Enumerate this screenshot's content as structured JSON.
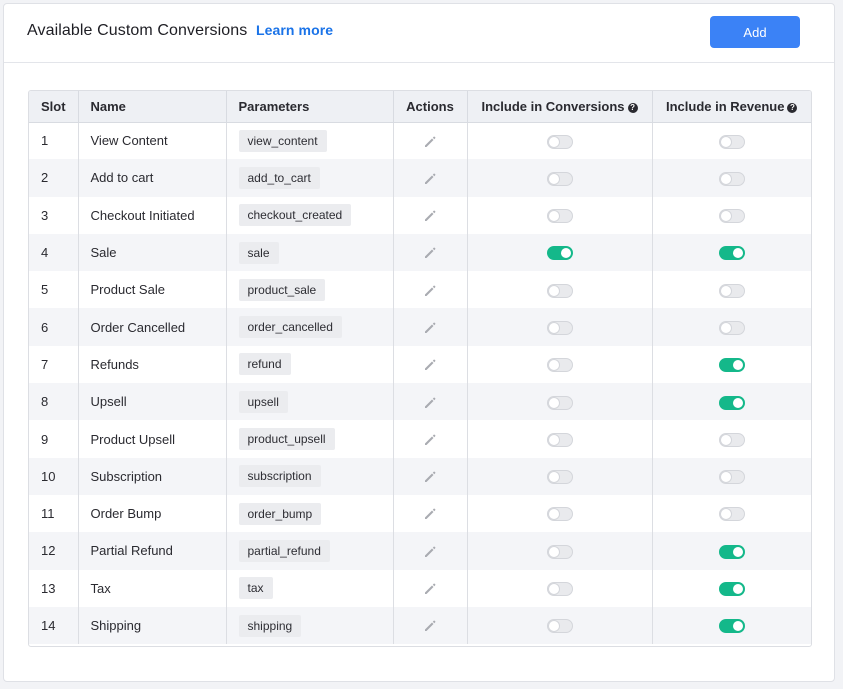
{
  "header": {
    "title": "Available Custom Conversions",
    "learn_more": "Learn more",
    "add_label": "Add"
  },
  "colors": {
    "accent": "#3b82f6",
    "toggle_on": "#14b88a",
    "link": "#1a73e8"
  },
  "table": {
    "columns": [
      "Slot",
      "Name",
      "Parameters",
      "Actions",
      "Include in Conversions",
      "Include in Revenue"
    ],
    "action_icon": "pencil-icon",
    "help_icon": "question-circle-icon",
    "rows": [
      {
        "slot": "1",
        "name": "View Content",
        "param": "view_content",
        "conversions": false,
        "revenue": false
      },
      {
        "slot": "2",
        "name": "Add to cart",
        "param": "add_to_cart",
        "conversions": false,
        "revenue": false
      },
      {
        "slot": "3",
        "name": "Checkout Initiated",
        "param": "checkout_created",
        "conversions": false,
        "revenue": false
      },
      {
        "slot": "4",
        "name": "Sale",
        "param": "sale",
        "conversions": true,
        "revenue": true
      },
      {
        "slot": "5",
        "name": "Product Sale",
        "param": "product_sale",
        "conversions": false,
        "revenue": false
      },
      {
        "slot": "6",
        "name": "Order Cancelled",
        "param": "order_cancelled",
        "conversions": false,
        "revenue": false
      },
      {
        "slot": "7",
        "name": "Refunds",
        "param": "refund",
        "conversions": false,
        "revenue": true
      },
      {
        "slot": "8",
        "name": "Upsell",
        "param": "upsell",
        "conversions": false,
        "revenue": true
      },
      {
        "slot": "9",
        "name": "Product Upsell",
        "param": "product_upsell",
        "conversions": false,
        "revenue": false
      },
      {
        "slot": "10",
        "name": "Subscription",
        "param": "subscription",
        "conversions": false,
        "revenue": false
      },
      {
        "slot": "11",
        "name": "Order Bump",
        "param": "order_bump",
        "conversions": false,
        "revenue": false
      },
      {
        "slot": "12",
        "name": "Partial Refund",
        "param": "partial_refund",
        "conversions": false,
        "revenue": true
      },
      {
        "slot": "13",
        "name": "Tax",
        "param": "tax",
        "conversions": false,
        "revenue": true
      },
      {
        "slot": "14",
        "name": "Shipping",
        "param": "shipping",
        "conversions": false,
        "revenue": true
      }
    ]
  }
}
